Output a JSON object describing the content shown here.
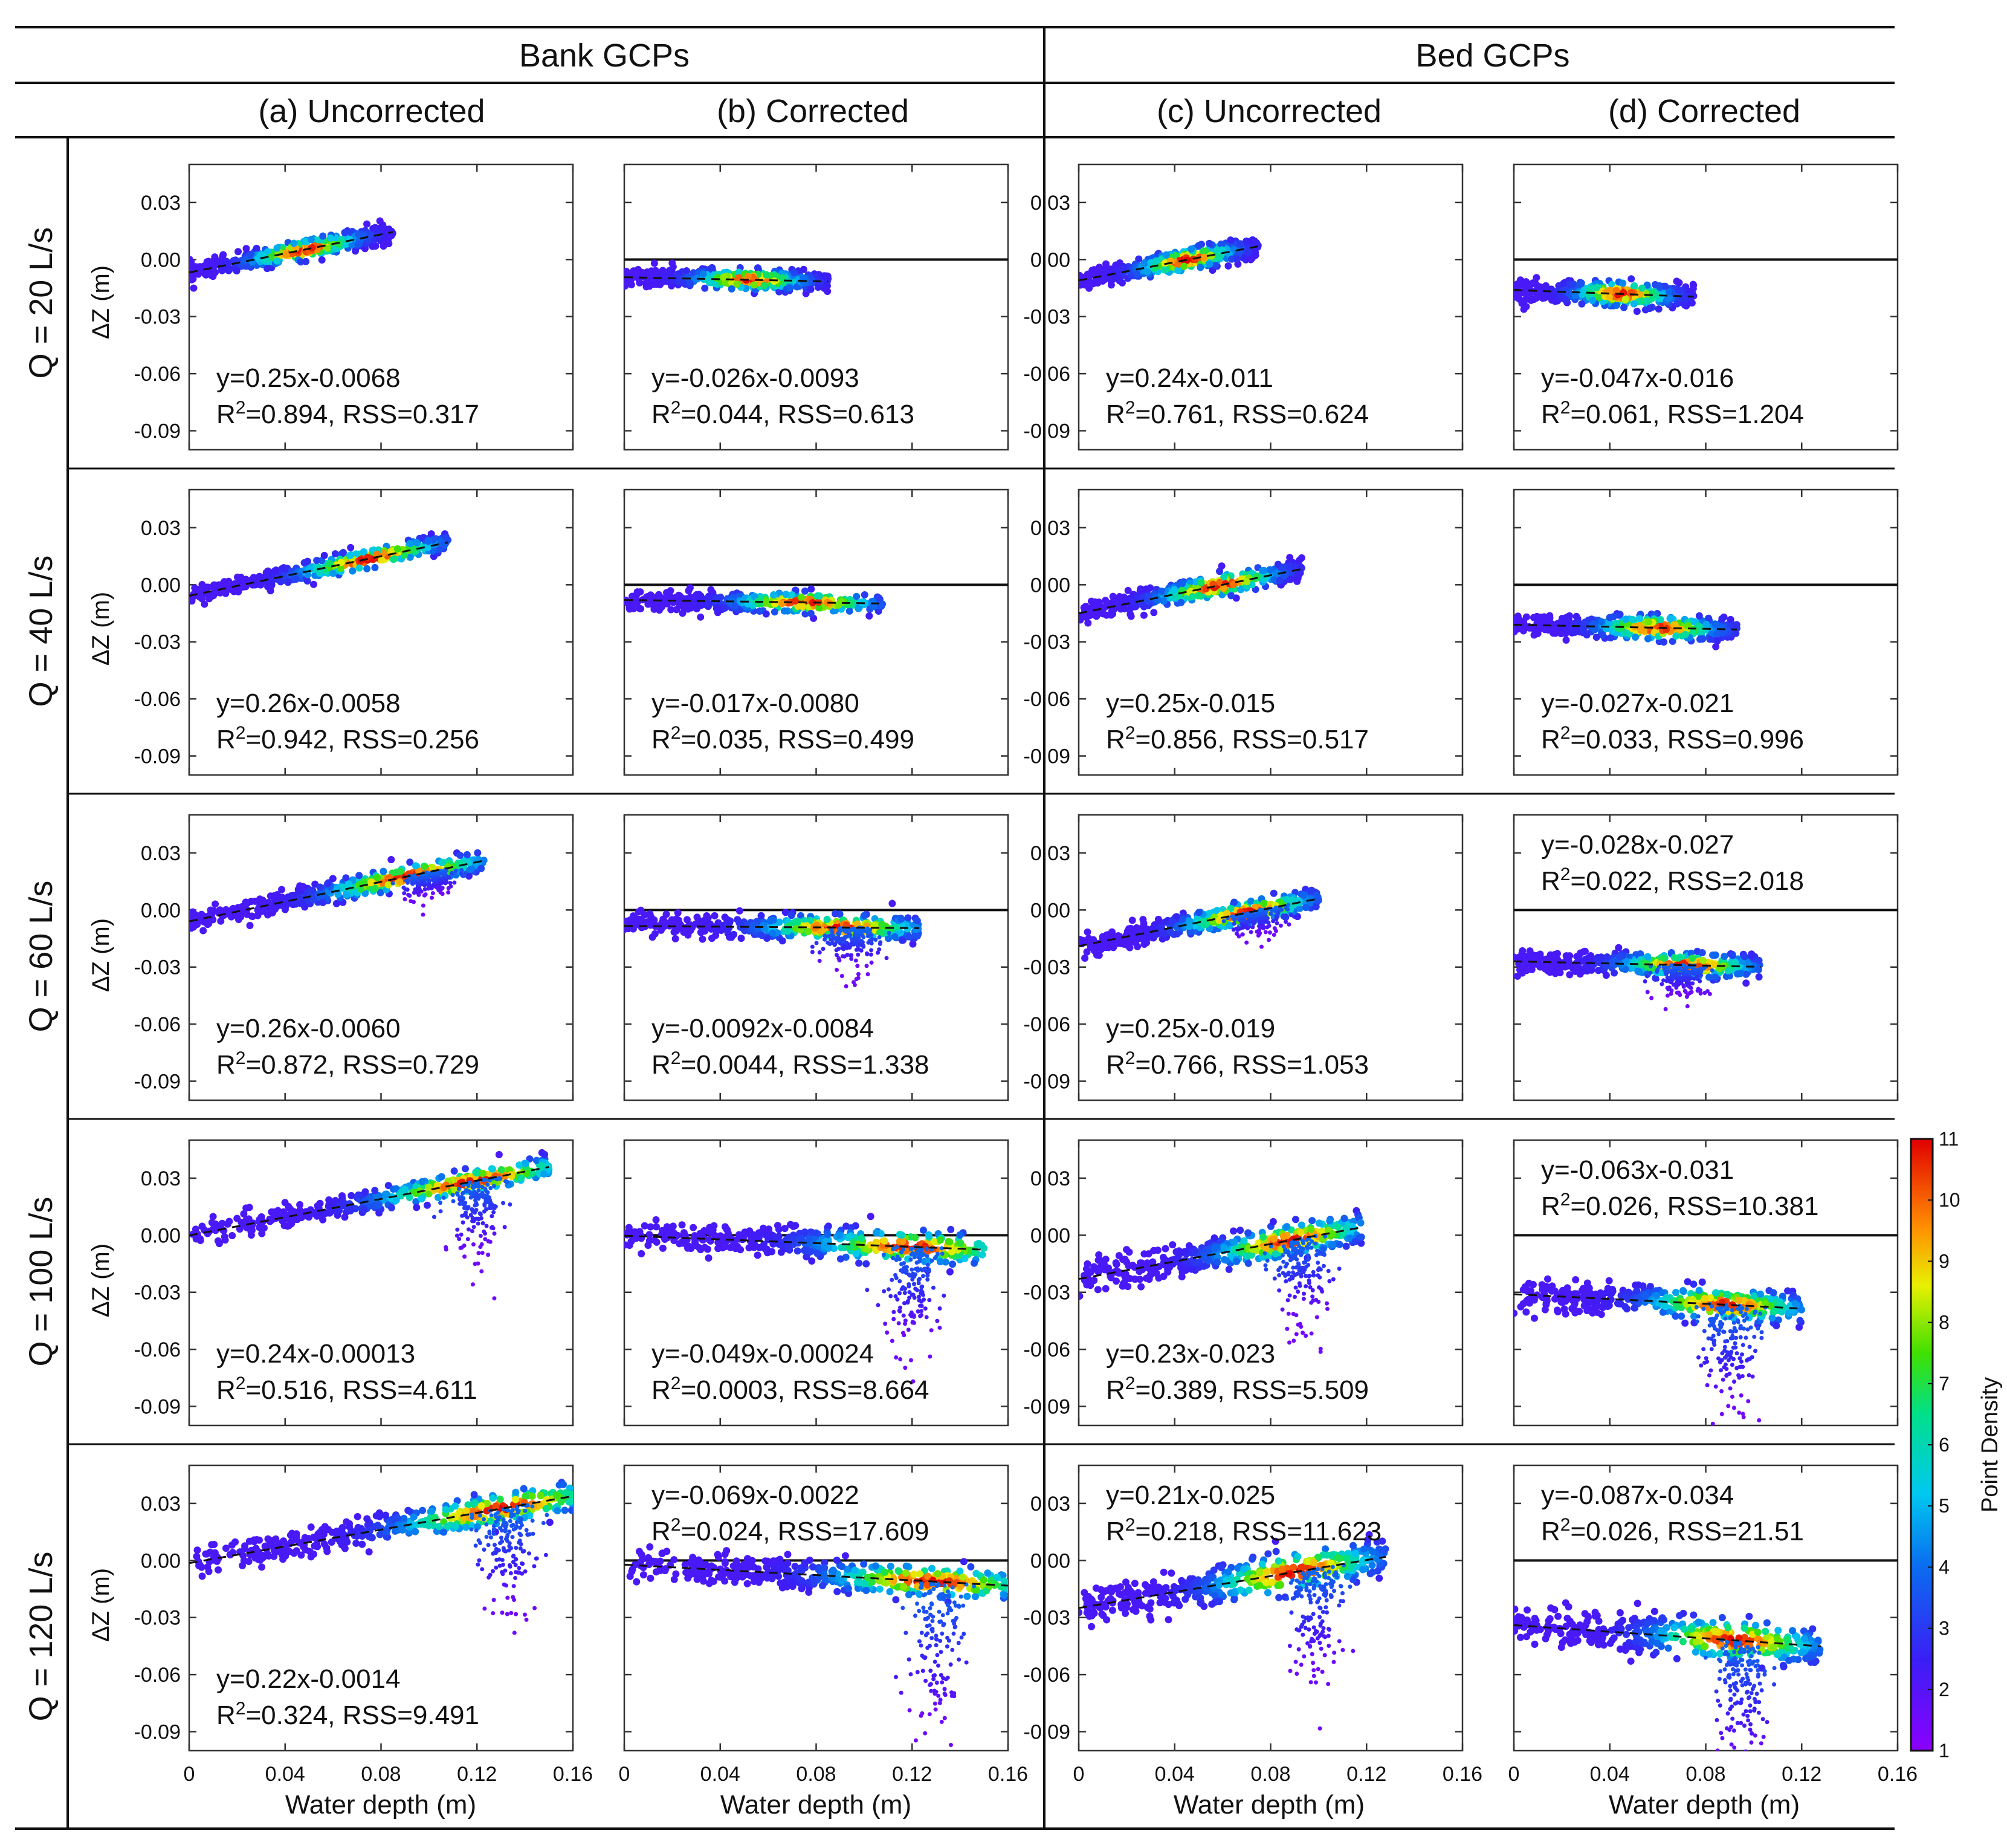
{
  "chart_data": {
    "type": "scatter",
    "group_headers": [
      "Bank GCPs",
      "Bed GCPs"
    ],
    "column_headers": [
      "(a) Uncorrected",
      "(b) Corrected",
      "(c) Uncorrected",
      "(d) Corrected"
    ],
    "row_labels": [
      "Q = 20 L/s",
      "Q = 40 L/s",
      "Q = 60 L/s",
      "Q = 100 L/s",
      "Q = 120 L/s"
    ],
    "xlabel": "Water depth (m)",
    "ylabel": "ΔZ (m)",
    "xlim": [
      0,
      0.16
    ],
    "ylim": [
      -0.1,
      0.05
    ],
    "x_ticks": [
      "0",
      "0.04",
      "0.08",
      "0.12",
      "0.16"
    ],
    "y_ticks": [
      "0.03",
      "0.00",
      "-0.03",
      "-0.06",
      "-0.09"
    ],
    "colorbar": {
      "label": "Point Density",
      "min": 1,
      "max": 11,
      "ticks": [
        "1",
        "2",
        "3",
        "4",
        "5",
        "6",
        "7",
        "8",
        "9",
        "10",
        "11"
      ]
    },
    "panels": [
      {
        "row": 0,
        "col": 0,
        "slope": 0.25,
        "intercept": -0.0068,
        "eq": "y=0.25x-0.0068",
        "r2": "=0.894, RSS=0.317",
        "zero_line": false,
        "ann_pos": "bottom",
        "x_range": [
          0,
          0.085
        ],
        "spread": 0.0025,
        "peak_x": 0.048
      },
      {
        "row": 0,
        "col": 1,
        "slope": -0.026,
        "intercept": -0.0093,
        "eq": "y=-0.026x-0.0093",
        "r2": "=0.044, RSS=0.613",
        "zero_line": true,
        "ann_pos": "bottom",
        "x_range": [
          0,
          0.085
        ],
        "spread": 0.0025,
        "peak_x": 0.052
      },
      {
        "row": 0,
        "col": 2,
        "slope": 0.24,
        "intercept": -0.011,
        "eq": "y=0.24x-0.011",
        "r2": "=0.761, RSS=0.624",
        "zero_line": false,
        "ann_pos": "bottom",
        "x_range": [
          0,
          0.075
        ],
        "spread": 0.0028,
        "peak_x": 0.045
      },
      {
        "row": 0,
        "col": 3,
        "slope": -0.047,
        "intercept": -0.016,
        "eq": "y=-0.047x-0.016",
        "r2": "=0.061, RSS=1.204",
        "zero_line": true,
        "ann_pos": "bottom",
        "x_range": [
          0,
          0.075
        ],
        "spread": 0.003,
        "peak_x": 0.045
      },
      {
        "row": 1,
        "col": 0,
        "slope": 0.26,
        "intercept": -0.0058,
        "eq": "y=0.26x-0.0058",
        "r2": "=0.942, RSS=0.256",
        "zero_line": false,
        "ann_pos": "bottom",
        "x_range": [
          0,
          0.108
        ],
        "spread": 0.0025,
        "peak_x": 0.075
      },
      {
        "row": 1,
        "col": 1,
        "slope": -0.017,
        "intercept": -0.008,
        "eq": "y=-0.017x-0.0080",
        "r2": "=0.035, RSS=0.499",
        "zero_line": true,
        "ann_pos": "bottom",
        "x_range": [
          0,
          0.108
        ],
        "spread": 0.0025,
        "peak_x": 0.075
      },
      {
        "row": 1,
        "col": 2,
        "slope": 0.25,
        "intercept": -0.015,
        "eq": "y=0.25x-0.015",
        "r2": "=0.856, RSS=0.517",
        "zero_line": false,
        "ann_pos": "bottom",
        "x_range": [
          0,
          0.093
        ],
        "spread": 0.0028,
        "peak_x": 0.058
      },
      {
        "row": 1,
        "col": 3,
        "slope": -0.027,
        "intercept": -0.021,
        "eq": "y=-0.027x-0.021",
        "r2": "=0.033, RSS=0.996",
        "zero_line": true,
        "ann_pos": "bottom",
        "x_range": [
          0,
          0.093
        ],
        "spread": 0.003,
        "peak_x": 0.06
      },
      {
        "row": 2,
        "col": 0,
        "slope": 0.26,
        "intercept": -0.006,
        "eq": "y=0.26x-0.0060",
        "r2": "=0.872, RSS=0.729",
        "zero_line": false,
        "ann_pos": "bottom",
        "x_range": [
          0,
          0.123
        ],
        "spread": 0.0028,
        "peak_x": 0.09,
        "tail_x": 0.1,
        "tail_depth": 0.012
      },
      {
        "row": 2,
        "col": 1,
        "slope": -0.0092,
        "intercept": -0.0084,
        "eq": "y=-0.0092x-0.0084",
        "r2": "=0.0044, RSS=1.338",
        "zero_line": true,
        "ann_pos": "bottom",
        "x_range": [
          0,
          0.123
        ],
        "spread": 0.003,
        "peak_x": 0.09,
        "tail_x": 0.095,
        "tail_depth": 0.02
      },
      {
        "row": 2,
        "col": 2,
        "slope": 0.25,
        "intercept": -0.019,
        "eq": "y=0.25x-0.019",
        "r2": "=0.766, RSS=1.053",
        "zero_line": false,
        "ann_pos": "bottom",
        "x_range": [
          0,
          0.1
        ],
        "spread": 0.003,
        "peak_x": 0.07,
        "tail_x": 0.075,
        "tail_depth": 0.012
      },
      {
        "row": 2,
        "col": 3,
        "slope": -0.028,
        "intercept": -0.027,
        "eq": "y=-0.028x-0.027",
        "r2": "=0.022, RSS=2.018",
        "zero_line": true,
        "ann_pos": "top",
        "x_range": [
          0,
          0.103
        ],
        "spread": 0.003,
        "peak_x": 0.072,
        "tail_x": 0.07,
        "tail_depth": 0.015
      },
      {
        "row": 3,
        "col": 0,
        "slope": 0.24,
        "intercept": -0.00013,
        "eq": "y=0.24x-0.00013",
        "r2": "=0.516, RSS=4.611",
        "zero_line": false,
        "ann_pos": "bottom",
        "x_range": [
          0,
          0.15
        ],
        "spread": 0.003,
        "peak_x": 0.118,
        "tail_x": 0.12,
        "tail_depth": 0.035
      },
      {
        "row": 3,
        "col": 1,
        "slope": -0.049,
        "intercept": -0.00024,
        "eq": "y=-0.049x-0.00024",
        "r2": "=0.0003, RSS=8.664",
        "zero_line": true,
        "ann_pos": "bottom",
        "x_range": [
          0,
          0.15
        ],
        "spread": 0.004,
        "peak_x": 0.12,
        "tail_x": 0.12,
        "tail_depth": 0.045
      },
      {
        "row": 3,
        "col": 2,
        "slope": 0.23,
        "intercept": -0.023,
        "eq": "y=0.23x-0.023",
        "r2": "=0.389, RSS=5.509",
        "zero_line": false,
        "ann_pos": "bottom",
        "x_range": [
          0,
          0.118
        ],
        "spread": 0.004,
        "peak_x": 0.088,
        "tail_x": 0.092,
        "tail_depth": 0.04
      },
      {
        "row": 3,
        "col": 3,
        "slope": -0.063,
        "intercept": -0.031,
        "eq": "y=-0.063x-0.031",
        "r2": "=0.026, RSS=10.381",
        "zero_line": true,
        "ann_pos": "top",
        "x_range": [
          0,
          0.12
        ],
        "spread": 0.004,
        "peak_x": 0.088,
        "tail_x": 0.09,
        "tail_depth": 0.05
      },
      {
        "row": 4,
        "col": 0,
        "slope": 0.22,
        "intercept": -0.0014,
        "eq": "y=0.22x-0.0014",
        "r2": "=0.324, RSS=9.491",
        "zero_line": false,
        "ann_pos": "bottom",
        "x_range": [
          0,
          0.16
        ],
        "spread": 0.004,
        "peak_x": 0.13,
        "tail_x": 0.132,
        "tail_depth": 0.05
      },
      {
        "row": 4,
        "col": 1,
        "slope": -0.069,
        "intercept": -0.0022,
        "eq": "y=-0.069x-0.0022",
        "r2": "=0.024, RSS=17.609",
        "zero_line": true,
        "ann_pos": "top",
        "x_range": [
          0,
          0.16
        ],
        "spread": 0.004,
        "peak_x": 0.128,
        "tail_x": 0.13,
        "tail_depth": 0.07
      },
      {
        "row": 4,
        "col": 2,
        "slope": 0.21,
        "intercept": -0.025,
        "eq": "y=0.21x-0.025",
        "r2": "=0.218, RSS=11.623",
        "zero_line": false,
        "ann_pos": "top",
        "x_range": [
          0,
          0.128
        ],
        "spread": 0.005,
        "peak_x": 0.09,
        "tail_x": 0.1,
        "tail_depth": 0.05
      },
      {
        "row": 4,
        "col": 3,
        "slope": -0.087,
        "intercept": -0.034,
        "eq": "y=-0.087x-0.034",
        "r2": "=0.026, RSS=21.51",
        "zero_line": true,
        "ann_pos": "top",
        "x_range": [
          0,
          0.128
        ],
        "spread": 0.005,
        "peak_x": 0.092,
        "tail_x": 0.095,
        "tail_depth": 0.06
      }
    ]
  }
}
